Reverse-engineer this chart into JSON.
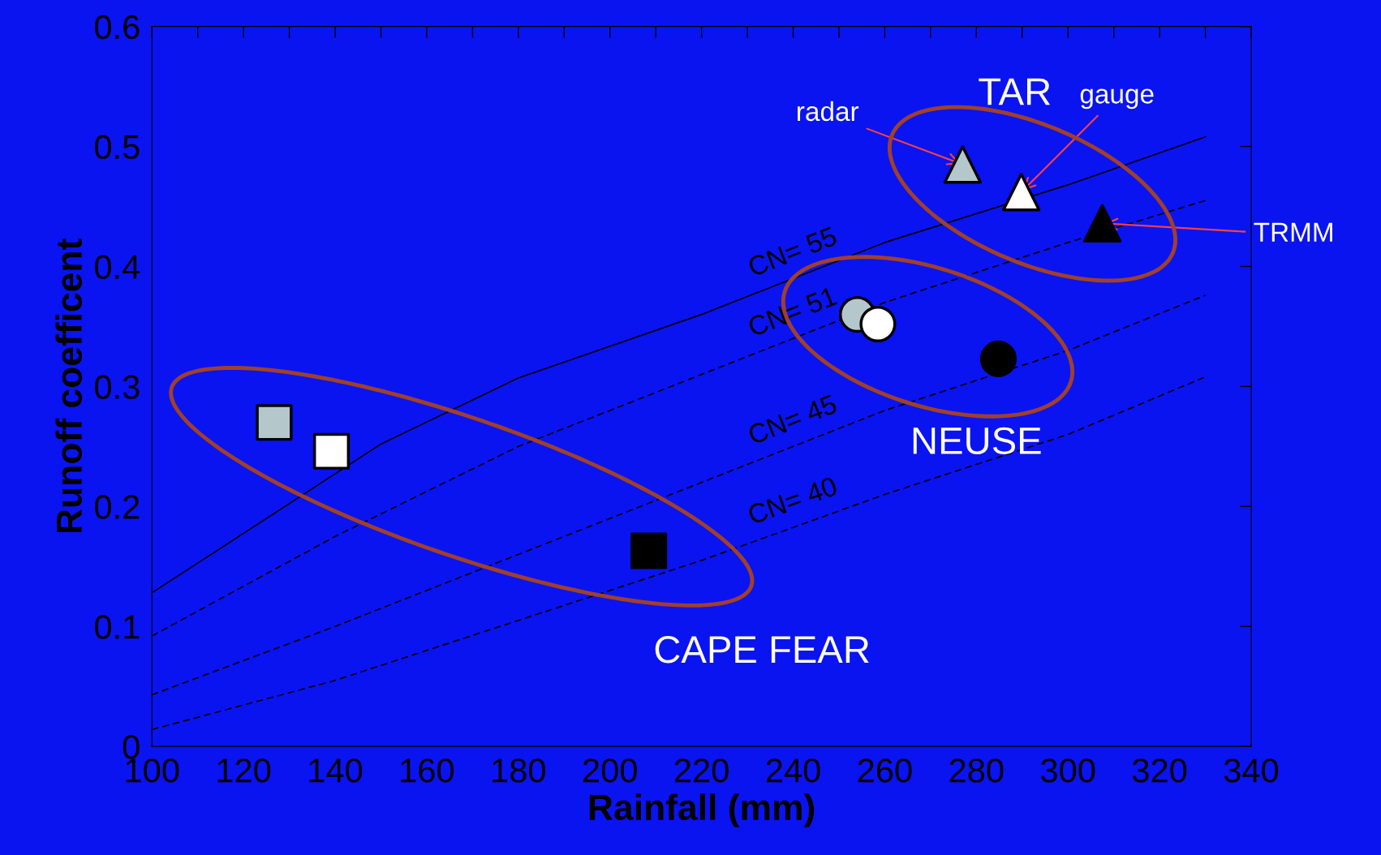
{
  "chart_data": {
    "type": "scatter",
    "xlabel": "Rainfall (mm)",
    "ylabel": "Runoff coefficent",
    "xlim": [
      100,
      340
    ],
    "ylim": [
      0,
      0.6
    ],
    "xticks": [
      100,
      {
        "value": 110,
        "label": null
      },
      120,
      {
        "value": 130,
        "label": null
      },
      140,
      {
        "value": 150,
        "label": null
      },
      160,
      {
        "value": 170,
        "label": null
      },
      180,
      {
        "value": 190,
        "label": null
      },
      200,
      {
        "value": 210,
        "label": null
      },
      220,
      {
        "value": 230,
        "label": null
      },
      240,
      {
        "value": 250,
        "label": null
      },
      260,
      {
        "value": 270,
        "label": null
      },
      280,
      {
        "value": 290,
        "label": null
      },
      300,
      {
        "value": 310,
        "label": null
      },
      320,
      {
        "value": 330,
        "label": null
      },
      340
    ],
    "yticks": [
      0,
      0.1,
      0.2,
      0.3,
      0.4,
      0.5,
      0.6
    ],
    "series": [
      {
        "type": "line",
        "name": "CN= 55",
        "color": "#000000",
        "line_style": "solid",
        "x": [
          100,
          150,
          180,
          220,
          260,
          300,
          330
        ],
        "values": [
          0.128,
          0.252,
          0.307,
          0.36,
          0.42,
          0.468,
          0.508
        ]
      },
      {
        "type": "line",
        "name": "CN= 51",
        "color": "#000000",
        "line_style": "dashed",
        "x": [
          100,
          140,
          180,
          220,
          260,
          300,
          330
        ],
        "values": [
          0.092,
          0.175,
          0.25,
          0.31,
          0.37,
          0.42,
          0.455
        ]
      },
      {
        "type": "line",
        "name": "CN= 45",
        "color": "#000000",
        "line_style": "dashed",
        "x": [
          100,
          140,
          180,
          220,
          260,
          300,
          330
        ],
        "values": [
          0.043,
          0.1,
          0.16,
          0.22,
          0.28,
          0.33,
          0.376
        ]
      },
      {
        "type": "line",
        "name": "CN= 40",
        "color": "#000000",
        "line_style": "dashed",
        "x": [
          100,
          140,
          180,
          220,
          260,
          300,
          330
        ],
        "values": [
          0.014,
          0.055,
          0.105,
          0.155,
          0.21,
          0.26,
          0.308
        ]
      },
      {
        "marker": "square",
        "color": "#b4c8cc",
        "x": [
          126.7
        ],
        "values": [
          0.27
        ]
      },
      {
        "marker": "square",
        "color": "#ffffff",
        "x": [
          139.2
        ],
        "values": [
          0.246
        ]
      },
      {
        "marker": "square",
        "color": "#000000",
        "x": [
          208.5
        ],
        "values": [
          0.163
        ]
      },
      {
        "marker": "circle",
        "color": "#b4c8cc",
        "x": [
          254
        ],
        "values": [
          0.36
        ]
      },
      {
        "marker": "circle",
        "color": "#ffffff",
        "x": [
          258.5
        ],
        "values": [
          0.352
        ]
      },
      {
        "marker": "circle",
        "color": "#000000",
        "x": [
          284.8
        ],
        "values": [
          0.323
        ]
      },
      {
        "marker": "triangle",
        "color": "#b4c8cc",
        "x": [
          277
        ],
        "values": [
          0.485
        ]
      },
      {
        "marker": "triangle",
        "color": "#ffffff",
        "x": [
          289.8
        ],
        "values": [
          0.462
        ]
      },
      {
        "marker": "triangle",
        "color": "#000000",
        "x": [
          307.5
        ],
        "values": [
          0.436
        ]
      }
    ],
    "annotations": [
      "CAPE FEAR",
      "NEUSE",
      "TAR",
      {
        "text": "radar",
        "x": 277,
        "y": 0.485
      },
      {
        "text": "gauge",
        "x": 289.8,
        "y": 0.462
      },
      {
        "text": "TRMM",
        "x": 307.5,
        "y": 0.436
      }
    ]
  }
}
